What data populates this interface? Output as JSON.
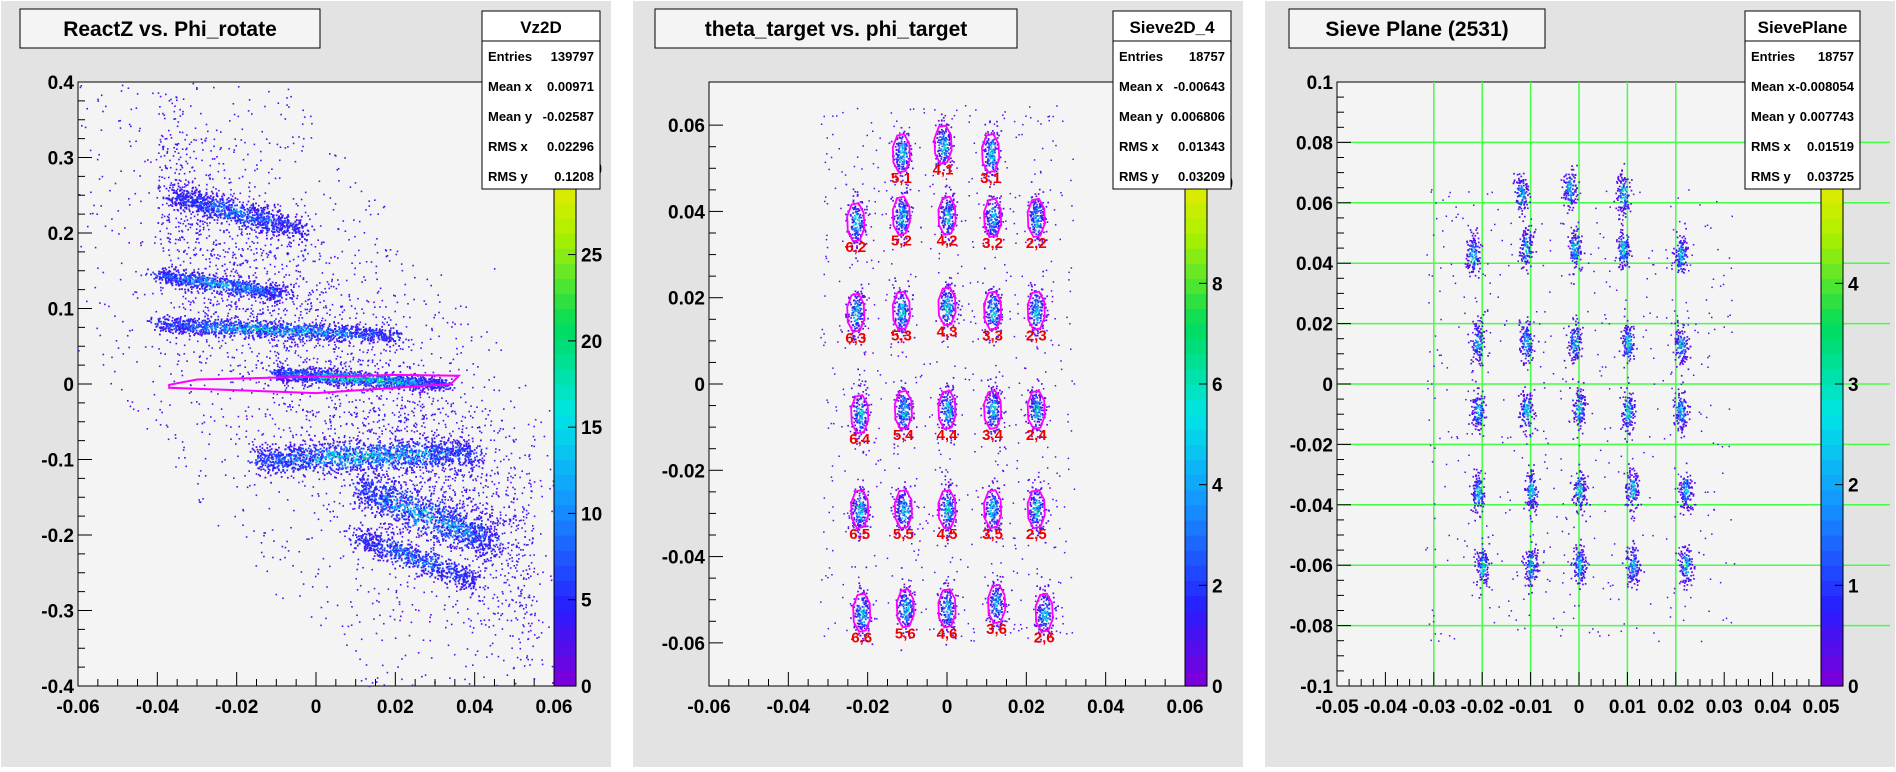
{
  "chart_data": [
    {
      "type": "heatmap",
      "title": "ReactZ vs. Phi_rotate",
      "xlim": [
        -0.06,
        0.06
      ],
      "ylim": [
        -0.4,
        0.4
      ],
      "x_ticks": [
        "-0.06",
        "-0.04",
        "-0.02",
        "0",
        "0.02",
        "0.04",
        "0.06"
      ],
      "y_ticks": [
        "-0.4",
        "-0.3",
        "-0.2",
        "-0.1",
        "0",
        "0.1",
        "0.2",
        "0.3",
        "0.4"
      ],
      "colorbar": {
        "min": 0,
        "max": 35,
        "ticks": [
          "0",
          "5",
          "10",
          "15",
          "20",
          "25",
          "30"
        ]
      },
      "stats": {
        "name": "Vz2D",
        "rows": [
          {
            "label": "Entries",
            "value": "139797"
          },
          {
            "label": "Mean x",
            "value": "0.00971"
          },
          {
            "label": "Mean y",
            "value": "-0.02587"
          },
          {
            "label": "RMS x",
            "value": "0.02296"
          },
          {
            "label": "RMS y",
            "value": "0.1208"
          }
        ]
      },
      "bands": [
        {
          "x0": -0.036,
          "x1": -0.004,
          "y0": 0.25,
          "y1": 0.205,
          "w": 0.018,
          "n": 900,
          "peak": 0.35
        },
        {
          "x0": -0.04,
          "x1": -0.008,
          "y0": 0.145,
          "y1": 0.12,
          "w": 0.012,
          "n": 800,
          "peak": 0.5
        },
        {
          "x0": -0.04,
          "x1": 0.02,
          "y0": 0.08,
          "y1": 0.065,
          "w": 0.012,
          "n": 1300,
          "peak": 0.55
        },
        {
          "x0": -0.01,
          "x1": 0.032,
          "y0": 0.015,
          "y1": 0.0,
          "w": 0.01,
          "n": 1400,
          "peak": 0.75
        },
        {
          "x0": -0.015,
          "x1": 0.04,
          "y0": -0.1,
          "y1": -0.09,
          "w": 0.022,
          "n": 1500,
          "peak": 0.6
        },
        {
          "x0": 0.01,
          "x1": 0.045,
          "y0": -0.135,
          "y1": -0.21,
          "w": 0.03,
          "n": 1200,
          "peak": 0.5
        },
        {
          "x0": 0.01,
          "x1": 0.04,
          "y0": -0.2,
          "y1": -0.26,
          "w": 0.018,
          "n": 700,
          "peak": 0.35
        }
      ],
      "cuts": [
        {
          "points": [
            [
              -0.037,
              -0.001
            ],
            [
              -0.03,
              0.006
            ],
            [
              0.02,
              0.012
            ],
            [
              0.036,
              0.011
            ],
            [
              0.034,
              0.0
            ],
            [
              0.0,
              -0.012
            ],
            [
              -0.037,
              -0.005
            ]
          ]
        }
      ],
      "cut_labels": []
    },
    {
      "type": "heatmap",
      "title": "theta_target vs. phi_target",
      "xlim": [
        -0.06,
        0.06
      ],
      "ylim": [
        -0.07,
        0.07
      ],
      "x_ticks": [
        "-0.06",
        "-0.04",
        "-0.02",
        "0",
        "0.02",
        "0.04",
        "0.06"
      ],
      "y_ticks": [
        "-0.06",
        "-0.04",
        "-0.02",
        "0",
        "0.02",
        "0.04",
        "0.06"
      ],
      "colorbar": {
        "min": 0,
        "max": 12,
        "ticks": [
          "0",
          "2",
          "4",
          "6",
          "8",
          "10"
        ]
      },
      "stats": {
        "name": "Sieve2D_4",
        "rows": [
          {
            "label": "Entries",
            "value": "18757"
          },
          {
            "label": "Mean x",
            "value": "-0.00643"
          },
          {
            "label": "Mean y",
            "value": "0.006806"
          },
          {
            "label": "RMS x",
            "value": "0.01343"
          },
          {
            "label": "RMS y",
            "value": "0.03209"
          }
        ]
      },
      "holes": [
        {
          "x": -0.0115,
          "y": 0.0535,
          "label": "5,1"
        },
        {
          "x": -0.001,
          "y": 0.0555,
          "label": "4,1"
        },
        {
          "x": 0.011,
          "y": 0.0535,
          "label": "3,1"
        },
        {
          "x": -0.023,
          "y": 0.0375,
          "label": "6,2"
        },
        {
          "x": -0.0115,
          "y": 0.039,
          "label": "5,2"
        },
        {
          "x": 0.0,
          "y": 0.039,
          "label": "4,2"
        },
        {
          "x": 0.0115,
          "y": 0.0385,
          "label": "3,2"
        },
        {
          "x": 0.0225,
          "y": 0.0385,
          "label": "2,2"
        },
        {
          "x": -0.023,
          "y": 0.0165,
          "label": "6,3"
        },
        {
          "x": -0.0115,
          "y": 0.017,
          "label": "5,3"
        },
        {
          "x": 0.0,
          "y": 0.018,
          "label": "4,3"
        },
        {
          "x": 0.0115,
          "y": 0.017,
          "label": "3,3"
        },
        {
          "x": 0.0225,
          "y": 0.017,
          "label": "2,3"
        },
        {
          "x": -0.022,
          "y": -0.007,
          "label": "6,4"
        },
        {
          "x": -0.011,
          "y": -0.006,
          "label": "5,4"
        },
        {
          "x": 0.0,
          "y": -0.006,
          "label": "4,4"
        },
        {
          "x": 0.0115,
          "y": -0.006,
          "label": "3,4"
        },
        {
          "x": 0.0225,
          "y": -0.006,
          "label": "2,4"
        },
        {
          "x": -0.022,
          "y": -0.029,
          "label": "6,5"
        },
        {
          "x": -0.011,
          "y": -0.029,
          "label": "5,5"
        },
        {
          "x": 0.0,
          "y": -0.029,
          "label": "4,5"
        },
        {
          "x": 0.0115,
          "y": -0.029,
          "label": "3,5"
        },
        {
          "x": 0.0225,
          "y": -0.029,
          "label": "2,5"
        },
        {
          "x": -0.0215,
          "y": -0.053,
          "label": "6,6"
        },
        {
          "x": -0.0105,
          "y": -0.052,
          "label": "5,6"
        },
        {
          "x": 0.0,
          "y": -0.052,
          "label": "4,6"
        },
        {
          "x": 0.0125,
          "y": -0.051,
          "label": "3,6"
        },
        {
          "x": 0.0245,
          "y": -0.053,
          "label": "2,6"
        }
      ]
    },
    {
      "type": "heatmap",
      "title": "Sieve Plane (2531)",
      "xlim": [
        -0.05,
        0.05
      ],
      "ylim": [
        -0.1,
        0.1
      ],
      "x_ticks": [
        "-0.05",
        "-0.04",
        "-0.03",
        "-0.02",
        "-0.01",
        "0",
        "0.01",
        "0.02",
        "0.03",
        "0.04",
        "0.05"
      ],
      "y_ticks": [
        "-0.1",
        "-0.08",
        "-0.06",
        "-0.04",
        "-0.02",
        "0",
        "0.02",
        "0.04",
        "0.06",
        "0.08",
        "0.1"
      ],
      "colorbar": {
        "min": 0,
        "max": 6,
        "ticks": [
          "0",
          "1",
          "2",
          "3",
          "4",
          "5"
        ]
      },
      "stats": {
        "name": "SievePlane",
        "rows": [
          {
            "label": "Entries",
            "value": "18757"
          },
          {
            "label": "Mean x",
            "value": "-0.008054"
          },
          {
            "label": "Mean y",
            "value": "0.007743"
          },
          {
            "label": "RMS x",
            "value": "0.01519"
          },
          {
            "label": "RMS y",
            "value": "0.03725"
          }
        ]
      },
      "grid_x": [
        -0.03,
        -0.02,
        -0.01,
        0.0,
        0.01,
        0.02
      ],
      "grid_y": [
        -0.08,
        -0.06,
        -0.04,
        -0.02,
        0.0,
        0.02,
        0.04,
        0.06,
        0.08
      ],
      "holes": [
        {
          "x": -0.012,
          "y": 0.063
        },
        {
          "x": -0.002,
          "y": 0.065
        },
        {
          "x": 0.009,
          "y": 0.063
        },
        {
          "x": -0.022,
          "y": 0.043
        },
        {
          "x": -0.011,
          "y": 0.045
        },
        {
          "x": -0.001,
          "y": 0.045
        },
        {
          "x": 0.009,
          "y": 0.045
        },
        {
          "x": 0.021,
          "y": 0.043
        },
        {
          "x": -0.021,
          "y": 0.014
        },
        {
          "x": -0.011,
          "y": 0.014
        },
        {
          "x": -0.001,
          "y": 0.014
        },
        {
          "x": 0.01,
          "y": 0.014
        },
        {
          "x": 0.021,
          "y": 0.013
        },
        {
          "x": -0.021,
          "y": -0.009
        },
        {
          "x": -0.011,
          "y": -0.009
        },
        {
          "x": 0.0,
          "y": -0.008
        },
        {
          "x": 0.01,
          "y": -0.009
        },
        {
          "x": 0.021,
          "y": -0.009
        },
        {
          "x": -0.021,
          "y": -0.036
        },
        {
          "x": -0.01,
          "y": -0.035
        },
        {
          "x": 0.0,
          "y": -0.035
        },
        {
          "x": 0.011,
          "y": -0.035
        },
        {
          "x": 0.022,
          "y": -0.035
        },
        {
          "x": -0.02,
          "y": -0.06
        },
        {
          "x": -0.01,
          "y": -0.06
        },
        {
          "x": 0.0,
          "y": -0.06
        },
        {
          "x": 0.011,
          "y": -0.06
        },
        {
          "x": 0.022,
          "y": -0.06
        }
      ]
    }
  ],
  "colors": {
    "frame_bg": "#e3e3e3",
    "plot_bg": "#f4f4f4",
    "cut_magenta": "#ff00ff",
    "label_red": "#ee0000",
    "grid_green": "#44ff44"
  }
}
